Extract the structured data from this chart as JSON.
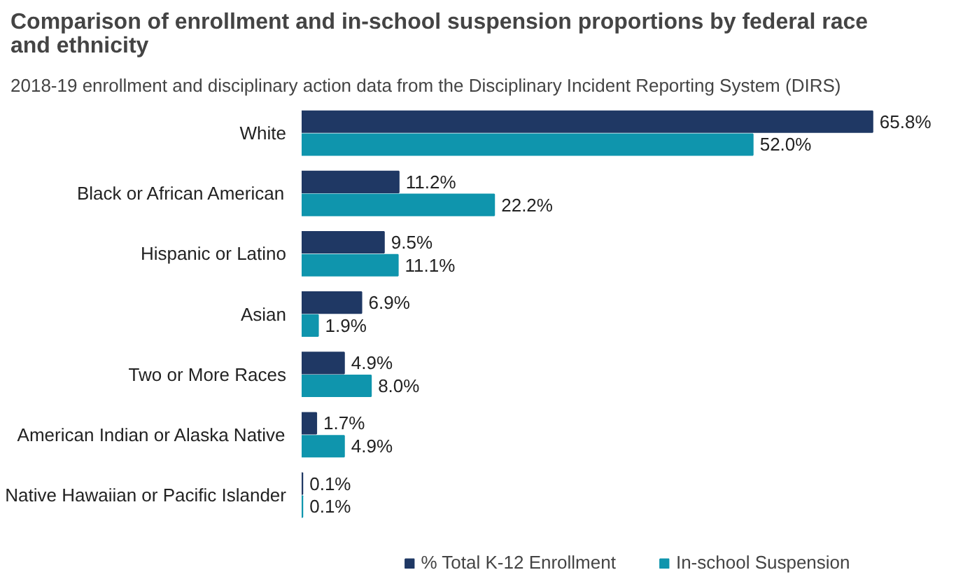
{
  "chart_data": {
    "type": "bar",
    "orientation": "horizontal",
    "tick_labels": "y",
    "title": "Comparison of enrollment and in-school suspension proportions by federal race and ethnicity",
    "subtitle": "2018-19 enrollment and disciplinary action data from the Disciplinary Incident Reporting System (DIRS)",
    "categories": [
      "White",
      "Black or African American",
      "Hispanic or Latino",
      "Asian",
      "Two or More Races",
      "American Indian or Alaska Native",
      "Native Hawaiian or Pacific Islander"
    ],
    "series": [
      {
        "name": "% Total K-12 Enrollment",
        "color": "#1f3864",
        "values": [
          65.8,
          11.2,
          9.5,
          6.9,
          4.9,
          1.7,
          0.1
        ],
        "value_labels": [
          "65.8%",
          "11.2%",
          "9.5%",
          "6.9%",
          "4.9%",
          "1.7%",
          "0.1%"
        ]
      },
      {
        "name": "In-school Suspension",
        "color": "#0f95ad",
        "values": [
          52.0,
          22.2,
          11.1,
          1.9,
          8.0,
          4.9,
          0.1
        ],
        "value_labels": [
          "52.0%",
          "22.2%",
          "11.1%",
          "1.9%",
          "8.0%",
          "4.9%",
          "0.1%"
        ]
      }
    ],
    "legend": "bottom"
  }
}
